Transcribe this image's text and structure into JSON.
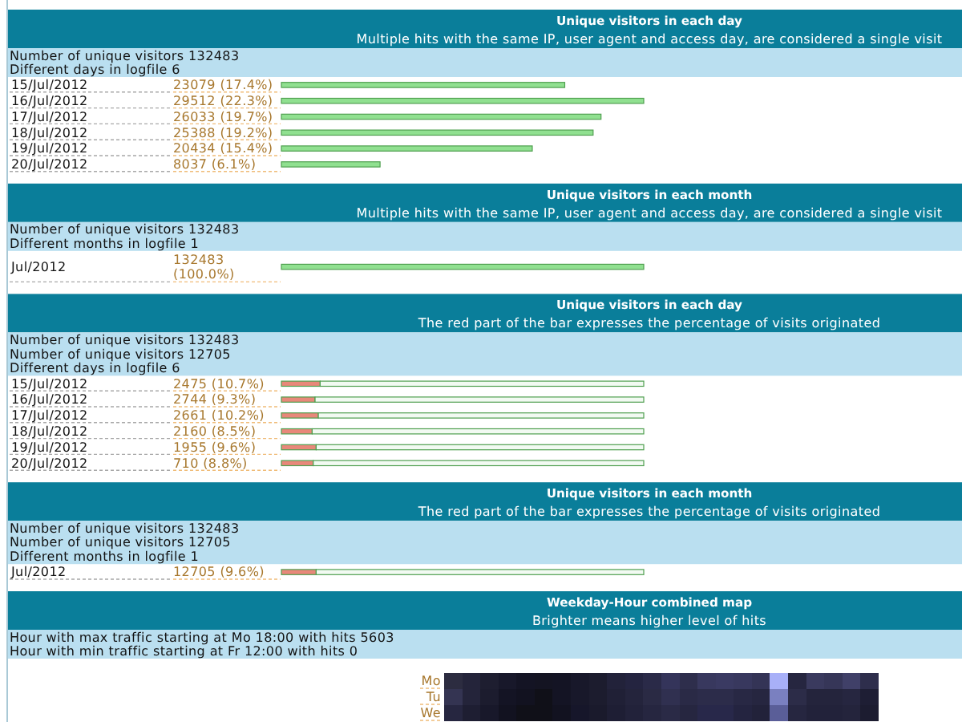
{
  "chart_data": [
    {
      "type": "bar",
      "orientation": "horizontal",
      "title": "Unique visitors in each day",
      "subtitle": "Multiple hits with the same IP, user agent and access day, are considered a single visit",
      "annotations": [
        "Number of unique visitors 132483",
        "Different days in logfile 6"
      ],
      "categories": [
        "15/Jul/2012",
        "16/Jul/2012",
        "17/Jul/2012",
        "18/Jul/2012",
        "19/Jul/2012",
        "20/Jul/2012"
      ],
      "values": [
        23079,
        29512,
        26033,
        25388,
        20434,
        8037
      ],
      "value_labels": [
        "23079 (17.4%)",
        "29512 (22.3%)",
        "26033 (19.7%)",
        "25388 (19.2%)",
        "20434 (15.4%)",
        "8037 (6.1%)"
      ],
      "color": "#90e090"
    },
    {
      "type": "bar",
      "orientation": "horizontal",
      "title": "Unique visitors in each month",
      "subtitle": "Multiple hits with the same IP, user agent and access day, are considered a single visit",
      "annotations": [
        "Number of unique visitors 132483",
        "Different months in logfile 1"
      ],
      "categories": [
        "Jul/2012"
      ],
      "values": [
        132483
      ],
      "value_labels": [
        "132483 (100.0%)"
      ],
      "color": "#90e090"
    },
    {
      "type": "bar",
      "orientation": "horizontal",
      "stacked": true,
      "title": "Unique visitors in each day",
      "subtitle": "The red part of the bar expresses the percentage of visits originated",
      "annotations": [
        "Number of unique visitors 132483",
        "Number of unique visitors 12705",
        "Different days in logfile 6"
      ],
      "categories": [
        "15/Jul/2012",
        "16/Jul/2012",
        "17/Jul/2012",
        "18/Jul/2012",
        "19/Jul/2012",
        "20/Jul/2012"
      ],
      "series": [
        {
          "color": "#e8887a",
          "values": [
            10.7,
            9.3,
            10.2,
            8.5,
            9.6,
            8.8
          ],
          "value_labels": [
            "2475 (10.7%)",
            "2744 (9.3%)",
            "2661 (10.2%)",
            "2160 (8.5%)",
            "1955 (9.6%)",
            "710 (8.8%)"
          ]
        },
        {
          "color": "#f2faf2",
          "values": [
            89.3,
            90.7,
            89.8,
            91.5,
            90.4,
            91.2
          ]
        }
      ]
    },
    {
      "type": "bar",
      "orientation": "horizontal",
      "stacked": true,
      "title": "Unique visitors in each month",
      "subtitle": "The red part of the bar expresses the percentage of visits originated",
      "annotations": [
        "Number of unique visitors 132483",
        "Number of unique visitors 12705",
        "Different months in logfile 1"
      ],
      "categories": [
        "Jul/2012"
      ],
      "series": [
        {
          "color": "#e8887a",
          "values": [
            9.6
          ],
          "value_labels": [
            "12705 (9.6%)"
          ]
        },
        {
          "color": "#f2faf2",
          "values": [
            90.4
          ]
        }
      ]
    },
    {
      "type": "other",
      "title": "Weekday-Hour combined map",
      "subtitle": "Brighter means higher level of hits",
      "annotations": [
        "Hour with max traffic starting at Mo 18:00 with hits 5603",
        "Hour with min traffic starting at Fr 12:00 with hits 0"
      ],
      "y_categories": [
        "Mo",
        "Tu",
        "We"
      ]
    }
  ]
}
